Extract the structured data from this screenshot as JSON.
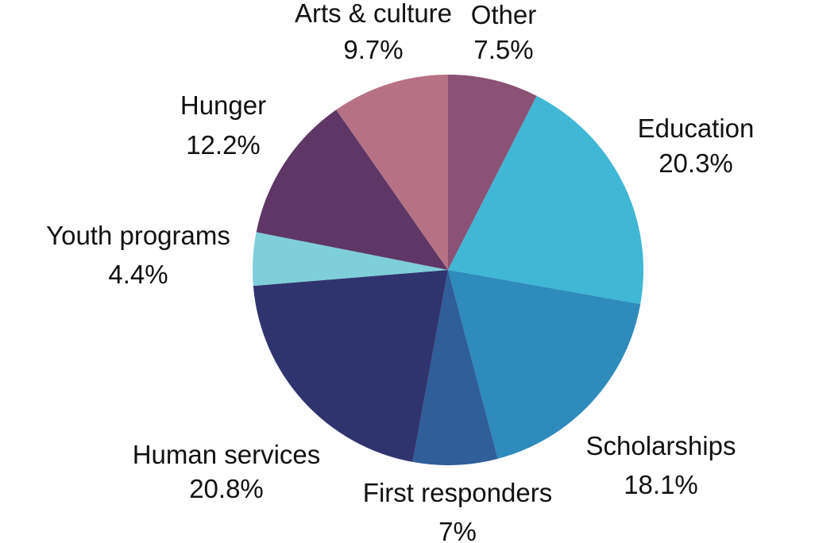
{
  "chart_data": {
    "type": "pie",
    "title": "",
    "start_angle_deg": 0,
    "direction": "clockwise",
    "slices": [
      {
        "label": "Other",
        "percent_label": "7.5%",
        "value": 7.5,
        "color": "#8B5275"
      },
      {
        "label": "Education",
        "percent_label": "20.3%",
        "value": 20.3,
        "color": "#3FB7D5"
      },
      {
        "label": "Scholarships",
        "percent_label": "18.1%",
        "value": 18.1,
        "color": "#2E8BBC"
      },
      {
        "label": "First responders",
        "percent_label": "7%",
        "value": 7.0,
        "color": "#2F5E99"
      },
      {
        "label": "Human services",
        "percent_label": "20.8%",
        "value": 20.8,
        "color": "#30346E"
      },
      {
        "label": "Youth programs",
        "percent_label": "4.4%",
        "value": 4.4,
        "color": "#7ECFDA"
      },
      {
        "label": "Hunger",
        "percent_label": "12.2%",
        "value": 12.2,
        "color": "#5E3766"
      },
      {
        "label": "Arts & culture",
        "percent_label": "9.7%",
        "value": 9.7,
        "color": "#B67284"
      }
    ]
  }
}
